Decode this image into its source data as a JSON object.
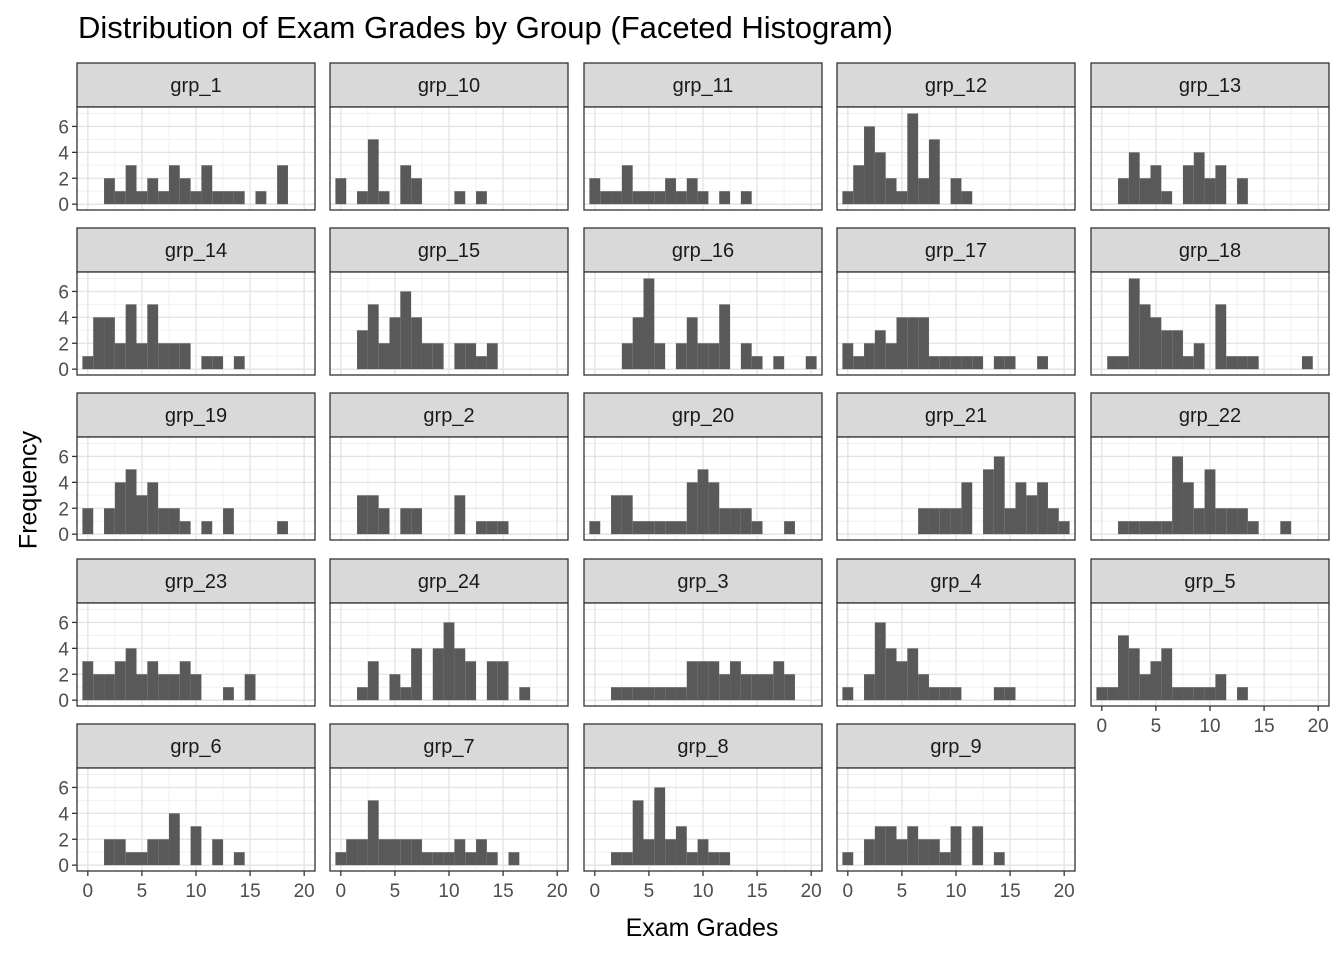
{
  "chart_data": {
    "type": "bar",
    "title": "Distribution of Exam Grades by Group (Faceted Histogram)",
    "xlabel": "Exam Grades",
    "ylabel": "Frequency",
    "xlim": [
      -1,
      21
    ],
    "ylim": [
      0,
      7.5
    ],
    "x_ticks": [
      0,
      5,
      10,
      15,
      20
    ],
    "y_ticks": [
      0,
      2,
      4,
      6
    ],
    "bin_width": 1,
    "bin_centers": [
      0,
      1,
      2,
      3,
      4,
      5,
      6,
      7,
      8,
      9,
      10,
      11,
      12,
      13,
      14,
      15,
      16,
      17,
      18,
      19,
      20
    ],
    "grid": true,
    "bar_color": "#595959",
    "strip_fill": "#d9d9d9",
    "facets": [
      {
        "name": "grp_1",
        "counts": [
          0,
          0,
          2,
          1,
          3,
          1,
          2,
          1,
          3,
          2,
          1,
          3,
          1,
          1,
          1,
          0,
          1,
          0,
          3,
          0,
          0
        ]
      },
      {
        "name": "grp_10",
        "counts": [
          2,
          0,
          1,
          5,
          1,
          0,
          3,
          2,
          0,
          0,
          0,
          1,
          0,
          1,
          0,
          0,
          0,
          0,
          0,
          0,
          0
        ]
      },
      {
        "name": "grp_11",
        "counts": [
          2,
          1,
          1,
          3,
          1,
          1,
          1,
          2,
          1,
          2,
          1,
          0,
          1,
          0,
          1,
          0,
          0,
          0,
          0,
          0,
          0
        ]
      },
      {
        "name": "grp_12",
        "counts": [
          1,
          3,
          6,
          4,
          2,
          1,
          7,
          2,
          5,
          0,
          2,
          1,
          0,
          0,
          0,
          0,
          0,
          0,
          0,
          0,
          0
        ]
      },
      {
        "name": "grp_13",
        "counts": [
          0,
          0,
          2,
          4,
          2,
          3,
          1,
          0,
          3,
          4,
          2,
          3,
          0,
          2,
          0,
          0,
          0,
          0,
          0,
          0,
          0
        ]
      },
      {
        "name": "grp_14",
        "counts": [
          1,
          4,
          4,
          2,
          5,
          2,
          5,
          2,
          2,
          2,
          0,
          1,
          1,
          0,
          1,
          0,
          0,
          0,
          0,
          0,
          0
        ]
      },
      {
        "name": "grp_15",
        "counts": [
          0,
          0,
          3,
          5,
          2,
          4,
          6,
          4,
          2,
          2,
          0,
          2,
          2,
          1,
          2,
          0,
          0,
          0,
          0,
          0,
          0
        ]
      },
      {
        "name": "grp_16",
        "counts": [
          0,
          0,
          0,
          2,
          4,
          7,
          2,
          0,
          2,
          4,
          2,
          2,
          5,
          0,
          2,
          1,
          0,
          1,
          0,
          0,
          1
        ]
      },
      {
        "name": "grp_17",
        "counts": [
          2,
          1,
          2,
          3,
          2,
          4,
          4,
          4,
          1,
          1,
          1,
          1,
          1,
          0,
          1,
          1,
          0,
          0,
          1,
          0,
          0
        ]
      },
      {
        "name": "grp_18",
        "counts": [
          0,
          1,
          1,
          7,
          5,
          4,
          3,
          3,
          1,
          2,
          0,
          5,
          1,
          1,
          1,
          0,
          0,
          0,
          0,
          1,
          0
        ]
      },
      {
        "name": "grp_19",
        "counts": [
          2,
          0,
          2,
          4,
          5,
          3,
          4,
          2,
          2,
          1,
          0,
          1,
          0,
          2,
          0,
          0,
          0,
          0,
          1,
          0,
          0
        ]
      },
      {
        "name": "grp_2",
        "counts": [
          0,
          0,
          3,
          3,
          2,
          0,
          2,
          2,
          0,
          0,
          0,
          3,
          0,
          1,
          1,
          1,
          0,
          0,
          0,
          0,
          0
        ]
      },
      {
        "name": "grp_20",
        "counts": [
          1,
          0,
          3,
          3,
          1,
          1,
          1,
          1,
          1,
          4,
          5,
          4,
          2,
          2,
          2,
          1,
          0,
          0,
          1,
          0,
          0
        ]
      },
      {
        "name": "grp_21",
        "counts": [
          0,
          0,
          0,
          0,
          0,
          0,
          0,
          2,
          2,
          2,
          2,
          4,
          0,
          5,
          6,
          2,
          4,
          3,
          4,
          2,
          1
        ]
      },
      {
        "name": "grp_22",
        "counts": [
          0,
          0,
          1,
          1,
          1,
          1,
          1,
          6,
          4,
          2,
          5,
          2,
          2,
          2,
          1,
          0,
          0,
          1,
          0,
          0,
          0
        ]
      },
      {
        "name": "grp_23",
        "counts": [
          3,
          2,
          2,
          3,
          4,
          2,
          3,
          2,
          2,
          3,
          2,
          0,
          0,
          1,
          0,
          2,
          0,
          0,
          0,
          0,
          0
        ]
      },
      {
        "name": "grp_24",
        "counts": [
          0,
          0,
          1,
          3,
          0,
          2,
          1,
          4,
          0,
          4,
          6,
          4,
          3,
          0,
          3,
          3,
          0,
          1,
          0,
          0,
          0
        ]
      },
      {
        "name": "grp_3",
        "counts": [
          0,
          0,
          1,
          1,
          1,
          1,
          1,
          1,
          1,
          3,
          3,
          3,
          2,
          3,
          2,
          2,
          2,
          3,
          2,
          0,
          0
        ]
      },
      {
        "name": "grp_4",
        "counts": [
          1,
          0,
          2,
          6,
          4,
          3,
          4,
          2,
          1,
          1,
          1,
          0,
          0,
          0,
          1,
          1,
          0,
          0,
          0,
          0,
          0
        ]
      },
      {
        "name": "grp_5",
        "counts": [
          1,
          1,
          5,
          4,
          2,
          3,
          4,
          1,
          1,
          1,
          1,
          2,
          0,
          1,
          0,
          0,
          0,
          0,
          0,
          0,
          0
        ]
      },
      {
        "name": "grp_6",
        "counts": [
          0,
          0,
          2,
          2,
          1,
          1,
          2,
          2,
          4,
          0,
          3,
          0,
          2,
          0,
          1,
          0,
          0,
          0,
          0,
          0,
          0
        ]
      },
      {
        "name": "grp_7",
        "counts": [
          1,
          2,
          2,
          5,
          2,
          2,
          2,
          2,
          1,
          1,
          1,
          2,
          1,
          2,
          1,
          0,
          1,
          0,
          0,
          0,
          0
        ]
      },
      {
        "name": "grp_8",
        "counts": [
          0,
          0,
          1,
          1,
          5,
          2,
          6,
          2,
          3,
          1,
          2,
          1,
          1,
          0,
          0,
          0,
          0,
          0,
          0,
          0,
          0
        ]
      },
      {
        "name": "grp_9",
        "counts": [
          1,
          0,
          2,
          3,
          3,
          2,
          3,
          2,
          2,
          1,
          3,
          0,
          3,
          0,
          1,
          0,
          0,
          0,
          0,
          0,
          0
        ]
      }
    ]
  }
}
